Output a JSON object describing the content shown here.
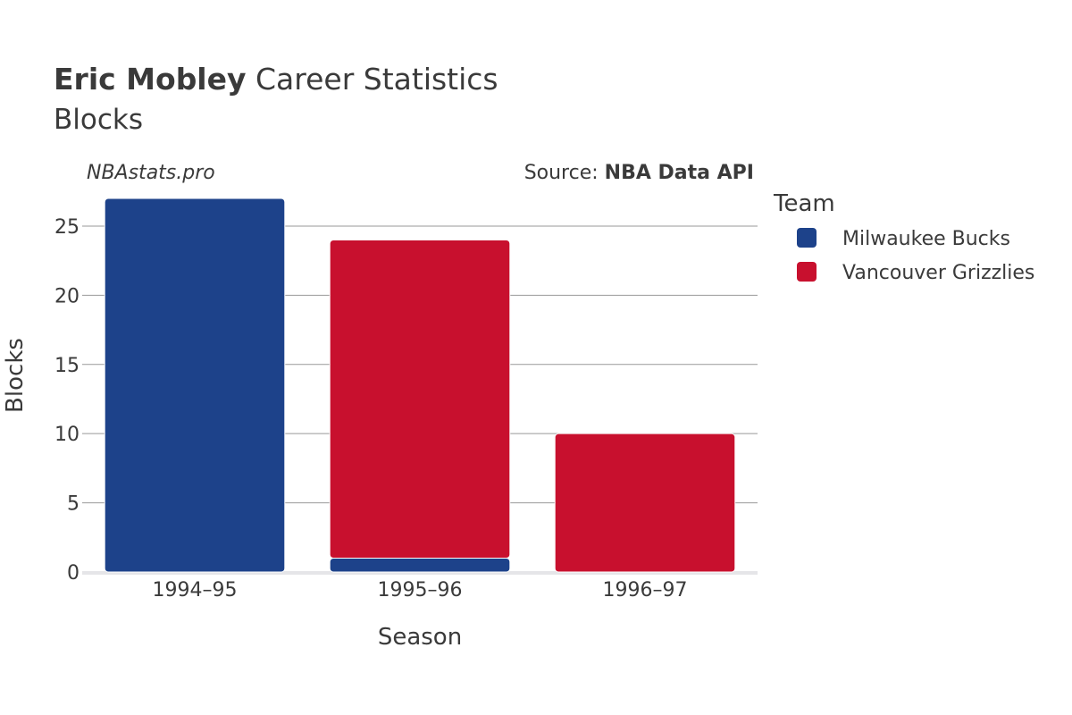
{
  "title": {
    "player": "Eric Mobley",
    "rest": " Career Statistics",
    "subtitle": "Blocks"
  },
  "brand": "NBAstats.pro",
  "source": {
    "prefix": "Source: ",
    "name": "NBA Data API"
  },
  "legend": {
    "title": "Team"
  },
  "chart_data": {
    "type": "bar",
    "stacked": true,
    "categories": [
      "1994–95",
      "1995–96",
      "1996–97"
    ],
    "series": [
      {
        "name": "Milwaukee Bucks",
        "values": [
          27,
          1,
          0
        ],
        "color": "#1d428a"
      },
      {
        "name": "Vancouver Grizzlies",
        "values": [
          0,
          23,
          10
        ],
        "color": "#c8102e"
      }
    ],
    "xlabel": "Season",
    "ylabel": "Blocks",
    "ylim": [
      0,
      27
    ],
    "yticks": [
      0,
      5,
      10,
      15,
      20,
      25
    ],
    "grid": true,
    "legend_position": "right"
  }
}
